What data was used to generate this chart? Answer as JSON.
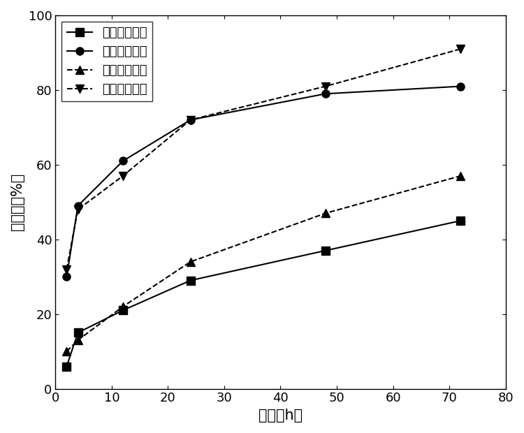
{
  "series": [
    {
      "label": "驯化前毒死蜱",
      "x": [
        2,
        4,
        12,
        24,
        48,
        72
      ],
      "y": [
        6,
        15,
        21,
        29,
        37,
        45
      ],
      "marker": "s",
      "linestyle": "-",
      "color": "black"
    },
    {
      "label": "驯化后毒死蜱",
      "x": [
        2,
        4,
        12,
        24,
        48,
        72
      ],
      "y": [
        30,
        49,
        61,
        72,
        79,
        81
      ],
      "marker": "o",
      "linestyle": "-",
      "color": "black"
    },
    {
      "label": "驯化前多菌灵",
      "x": [
        2,
        4,
        12,
        24,
        48,
        72
      ],
      "y": [
        10,
        13,
        22,
        34,
        47,
        57
      ],
      "marker": "^",
      "linestyle": "--",
      "color": "black"
    },
    {
      "label": "驯化后多菌灵",
      "x": [
        2,
        4,
        12,
        24,
        48,
        72
      ],
      "y": [
        32,
        48,
        57,
        72,
        81,
        91
      ],
      "marker": "v",
      "linestyle": "--",
      "color": "black"
    }
  ],
  "xlabel": "时间（h）",
  "ylabel": "降解率（%）",
  "xlim": [
    0,
    80
  ],
  "ylim": [
    0,
    100
  ],
  "xticks": [
    0,
    10,
    20,
    30,
    40,
    50,
    60,
    70,
    80
  ],
  "yticks": [
    0,
    20,
    40,
    60,
    80,
    100
  ],
  "title": "",
  "legend_loc": "upper left",
  "figsize": [
    7.5,
    6.2
  ],
  "dpi": 100,
  "background_color": "#ffffff",
  "markersize": 8,
  "linewidth": 1.5,
  "font_size_label": 15,
  "font_size_tick": 13,
  "font_size_legend": 13
}
